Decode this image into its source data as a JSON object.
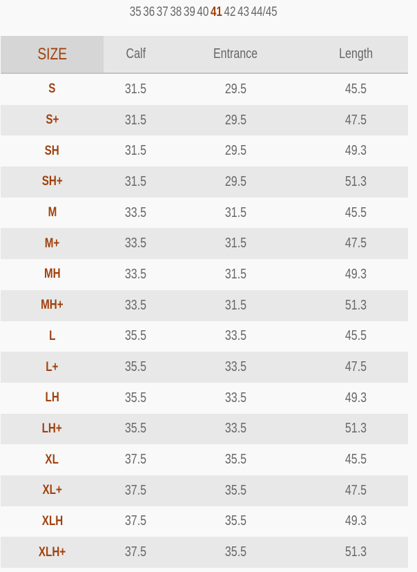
{
  "shoe_sizes": {
    "options": [
      "35",
      "36",
      "37",
      "38",
      "39",
      "40",
      "41",
      "42",
      "43",
      "44/45"
    ],
    "selected": "41"
  },
  "colors": {
    "accent": "#a0410d",
    "text": "#666666",
    "row_alt": "#e8e8e8"
  },
  "table": {
    "headers": [
      "SIZE",
      "Calf",
      "Entrance",
      "Length"
    ],
    "rows": [
      [
        "S",
        "31.5",
        "29.5",
        "45.5"
      ],
      [
        "S+",
        "31.5",
        "29.5",
        "47.5"
      ],
      [
        "SH",
        "31.5",
        "29.5",
        "49.3"
      ],
      [
        "SH+",
        "31.5",
        "29.5",
        "51.3"
      ],
      [
        "M",
        "33.5",
        "31.5",
        "45.5"
      ],
      [
        "M+",
        "33.5",
        "31.5",
        "47.5"
      ],
      [
        "MH",
        "33.5",
        "31.5",
        "49.3"
      ],
      [
        "MH+",
        "33.5",
        "31.5",
        "51.3"
      ],
      [
        "L",
        "35.5",
        "33.5",
        "45.5"
      ],
      [
        "L+",
        "35.5",
        "33.5",
        "47.5"
      ],
      [
        "LH",
        "35.5",
        "33.5",
        "49.3"
      ],
      [
        "LH+",
        "35.5",
        "33.5",
        "51.3"
      ],
      [
        "XL",
        "37.5",
        "35.5",
        "45.5"
      ],
      [
        "XL+",
        "37.5",
        "35.5",
        "47.5"
      ],
      [
        "XLH",
        "37.5",
        "35.5",
        "49.3"
      ],
      [
        "XLH+",
        "37.5",
        "35.5",
        "51.3"
      ]
    ]
  }
}
